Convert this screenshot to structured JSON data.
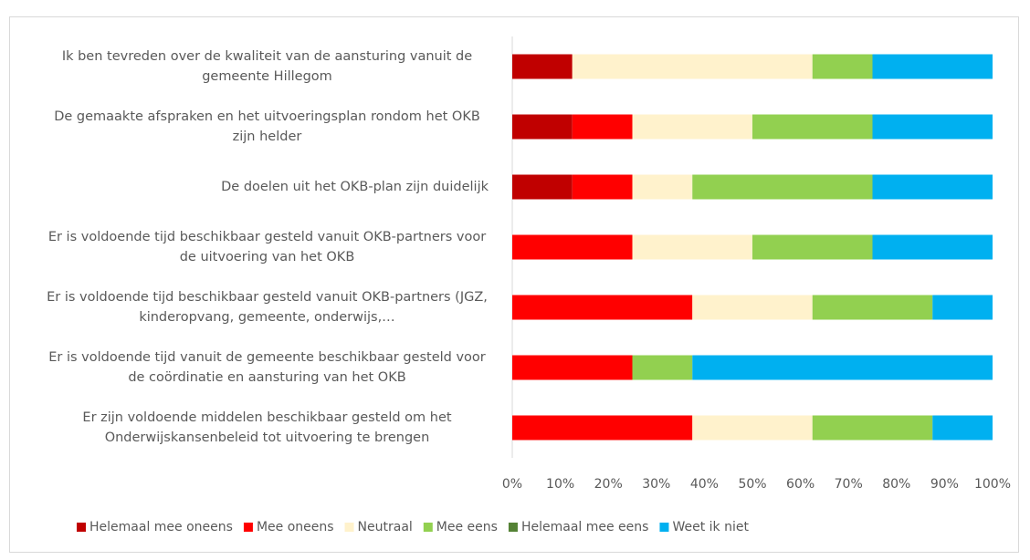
{
  "chart_data": {
    "type": "stacked_bar_horizontal",
    "categories": [
      "Ik ben tevreden over de kwaliteit van de aansturing vanuit de gemeente Hillegom",
      "De gemaakte afspraken en het uitvoeringsplan rondom het OKB zijn helder",
      "De doelen uit het OKB-plan zijn duidelijk",
      "Er is voldoende tijd beschikbaar gesteld vanuit OKB-partners voor de uitvoering van het OKB",
      "Er is voldoende tijd beschikbaar gesteld vanuit OKB-partners (JGZ, kinderopvang, gemeente, onderwijs,…",
      "Er is voldoende tijd vanuit de gemeente beschikbaar gesteld voor de coördinatie en aansturing van het OKB",
      "Er zijn voldoende middelen beschikbaar gesteld om het Onderwijskansenbeleid tot uitvoering te brengen"
    ],
    "series": [
      {
        "name": "Helemaal mee oneens",
        "color": "#c00000",
        "values": [
          12.5,
          12.5,
          12.5,
          0,
          0,
          0,
          0
        ]
      },
      {
        "name": "Mee oneens",
        "color": "#ff0000",
        "values": [
          0,
          12.5,
          12.5,
          25,
          37.5,
          25,
          37.5
        ]
      },
      {
        "name": "Neutraal",
        "color": "#fff2cc",
        "values": [
          50,
          25,
          12.5,
          25,
          25,
          0,
          25
        ]
      },
      {
        "name": "Mee eens",
        "color": "#92d050",
        "values": [
          12.5,
          25,
          37.5,
          25,
          25,
          12.5,
          25
        ]
      },
      {
        "name": "Helemaal mee eens",
        "color": "#548235",
        "values": [
          0,
          0,
          0,
          0,
          0,
          0,
          0
        ]
      },
      {
        "name": "Weet ik niet",
        "color": "#00b0f0",
        "values": [
          25,
          25,
          25,
          25,
          12.5,
          62.5,
          12.5
        ]
      }
    ],
    "xlim": [
      0,
      100
    ],
    "xticks": [
      {
        "value": 0,
        "label": "0%"
      },
      {
        "value": 10,
        "label": "10%"
      },
      {
        "value": 20,
        "label": "20%"
      },
      {
        "value": 30,
        "label": "30%"
      },
      {
        "value": 40,
        "label": "40%"
      },
      {
        "value": 50,
        "label": "50%"
      },
      {
        "value": 60,
        "label": "60%"
      },
      {
        "value": 70,
        "label": "70%"
      },
      {
        "value": 80,
        "label": "80%"
      },
      {
        "value": 90,
        "label": "90%"
      },
      {
        "value": 100,
        "label": "100%"
      }
    ],
    "grid": false,
    "legend": "bottom"
  }
}
